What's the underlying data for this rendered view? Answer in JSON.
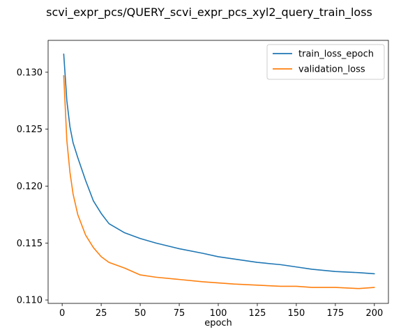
{
  "chart_data": {
    "type": "line",
    "title": "scvi_expr_pcs/QUERY_scvi_expr_pcs_xyl2_query_train_loss",
    "xlabel": "epoch",
    "ylabel": "",
    "xlim": [
      -9,
      209
    ],
    "ylim": [
      0.1097,
      0.1328
    ],
    "xticks": [
      0,
      25,
      50,
      75,
      100,
      125,
      150,
      175,
      200
    ],
    "yticks": [
      0.11,
      0.115,
      0.12,
      0.125,
      0.13
    ],
    "ytick_labels": [
      "0.110",
      "0.115",
      "0.120",
      "0.125",
      "0.130"
    ],
    "grid": false,
    "legend_position": "top-right",
    "x": [
      1,
      3,
      5,
      7,
      10,
      15,
      20,
      25,
      30,
      40,
      50,
      60,
      75,
      90,
      100,
      110,
      125,
      140,
      150,
      160,
      175,
      190,
      200
    ],
    "series": [
      {
        "name": "train_loss_epoch",
        "color": "#1f77b4",
        "values": [
          0.1316,
          0.1275,
          0.1252,
          0.1238,
          0.1225,
          0.1205,
          0.1187,
          0.1176,
          0.1167,
          0.1159,
          0.1154,
          0.115,
          0.1145,
          0.1141,
          0.1138,
          0.1136,
          0.1133,
          0.1131,
          0.1129,
          0.1127,
          0.1125,
          0.1124,
          0.1123
        ]
      },
      {
        "name": "validation_loss",
        "color": "#ff7f0e",
        "values": [
          0.1297,
          0.124,
          0.1212,
          0.1193,
          0.1175,
          0.1157,
          0.1146,
          0.1138,
          0.1133,
          0.1128,
          0.1122,
          0.112,
          0.1118,
          0.1116,
          0.1115,
          0.1114,
          0.1113,
          0.1112,
          0.1112,
          0.1111,
          0.1111,
          0.111,
          0.1111
        ]
      }
    ]
  }
}
